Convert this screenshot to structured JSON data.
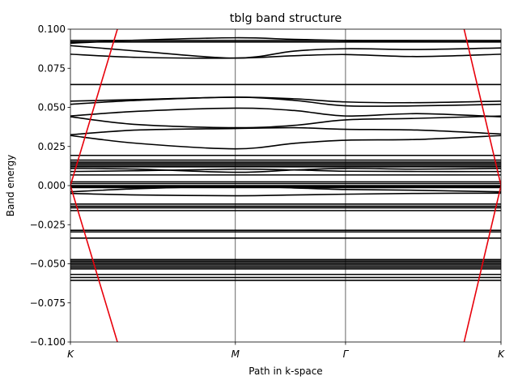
{
  "chart_data": {
    "type": "line",
    "title": "tblg band structure",
    "xlabel": "Path in k-space",
    "ylabel": "Band energy",
    "ylim": [
      -0.1,
      0.1
    ],
    "xlim": [
      0,
      3.85
    ],
    "yticks": [
      -0.1,
      -0.075,
      -0.05,
      -0.025,
      0.0,
      0.025,
      0.05,
      0.075,
      0.1
    ],
    "ytick_labels": [
      "−0.100",
      "−0.075",
      "−0.050",
      "−0.025",
      "0.000",
      "0.025",
      "0.050",
      "0.075",
      "0.100"
    ],
    "kpoints": [
      {
        "label": "K",
        "x": 0.0
      },
      {
        "label": "M",
        "x": 1.475
      },
      {
        "label": "Γ",
        "x": 2.46
      },
      {
        "label": "K",
        "x": 3.85
      }
    ],
    "grid": "vertical lines at k-points",
    "band_color": "#000000",
    "dirac_color": "#e8000b",
    "flat_bands": [
      0.0928,
      0.0918,
      0.0646,
      0.0193,
      0.0163,
      0.015,
      0.014,
      0.013,
      0.012,
      0.0068,
      0.0024,
      0.0013,
      0.0,
      -0.0007,
      -0.0013,
      -0.0118,
      -0.0132,
      -0.0142,
      -0.016,
      -0.0286,
      -0.0296,
      -0.0336,
      -0.0473,
      -0.0483,
      -0.0493,
      -0.0503,
      -0.0513,
      -0.0523,
      -0.0533,
      -0.0568,
      -0.0588,
      -0.0606
    ],
    "dispersive_bands": [
      {
        "x": [
          0.0,
          0.6,
          1.475,
          2.0,
          2.46,
          3.1,
          3.85
        ],
        "y": [
          0.084,
          0.082,
          0.0815,
          0.083,
          0.0838,
          0.0825,
          0.084
        ]
      },
      {
        "x": [
          0.0,
          0.6,
          1.475,
          2.0,
          2.46,
          3.1,
          3.85
        ],
        "y": [
          0.0895,
          0.086,
          0.0815,
          0.086,
          0.0875,
          0.087,
          0.088
        ]
      },
      {
        "x": [
          0.0,
          0.6,
          1.475,
          2.0,
          2.46,
          3.1,
          3.85
        ],
        "y": [
          0.091,
          0.093,
          0.0945,
          0.0935,
          0.0928,
          0.092,
          0.092
        ]
      },
      {
        "x": [
          0.0,
          0.6,
          1.475,
          2.0,
          2.46,
          3.1,
          3.85
        ],
        "y": [
          0.054,
          0.055,
          0.0565,
          0.0555,
          0.0535,
          0.053,
          0.054
        ]
      },
      {
        "x": [
          0.0,
          0.6,
          1.475,
          2.0,
          2.46,
          3.1,
          3.85
        ],
        "y": [
          0.052,
          0.0545,
          0.0565,
          0.0545,
          0.051,
          0.051,
          0.052
        ]
      },
      {
        "x": [
          0.0,
          0.6,
          1.475,
          2.0,
          2.46,
          3.1,
          3.85
        ],
        "y": [
          0.0445,
          0.0475,
          0.0495,
          0.048,
          0.0445,
          0.046,
          0.044
        ]
      },
      {
        "x": [
          0.0,
          0.6,
          1.475,
          2.0,
          2.46,
          3.1,
          3.85
        ],
        "y": [
          0.044,
          0.039,
          0.037,
          0.0385,
          0.042,
          0.043,
          0.0445
        ]
      },
      {
        "x": [
          0.0,
          0.6,
          1.475,
          2.0,
          2.46,
          3.1,
          3.85
        ],
        "y": [
          0.0325,
          0.0355,
          0.0365,
          0.037,
          0.036,
          0.0355,
          0.033
        ]
      },
      {
        "x": [
          0.0,
          0.6,
          1.475,
          2.0,
          2.46,
          3.1,
          3.85
        ],
        "y": [
          0.032,
          0.027,
          0.0235,
          0.027,
          0.029,
          0.0295,
          0.032
        ]
      },
      {
        "x": [
          0.0,
          0.6,
          1.475,
          2.0,
          2.46,
          3.1,
          3.85
        ],
        "y": [
          0.011,
          0.0105,
          0.0085,
          0.01,
          0.011,
          0.0105,
          0.011
        ]
      },
      {
        "x": [
          0.0,
          0.6,
          1.475,
          2.0,
          2.46,
          3.1,
          3.85
        ],
        "y": [
          0.009,
          0.0095,
          0.0105,
          0.01,
          0.0092,
          0.009,
          0.009
        ]
      },
      {
        "x": [
          0.0,
          0.6,
          1.475,
          2.0,
          2.46,
          3.1,
          3.85
        ],
        "y": [
          -0.004,
          -0.002,
          -0.0005,
          -0.0015,
          -0.0025,
          -0.003,
          -0.004
        ]
      },
      {
        "x": [
          0.0,
          0.6,
          1.475,
          2.0,
          2.46,
          3.1,
          3.85
        ],
        "y": [
          -0.005,
          -0.006,
          -0.0065,
          -0.006,
          -0.0055,
          -0.005,
          -0.0048
        ]
      }
    ],
    "dirac_lines": [
      {
        "x": [
          0.0,
          0.42
        ],
        "y": [
          0.0,
          0.1
        ]
      },
      {
        "x": [
          0.0,
          0.42
        ],
        "y": [
          0.0,
          -0.1
        ]
      },
      {
        "x": [
          3.85,
          3.52
        ],
        "y": [
          0.0,
          0.1
        ]
      },
      {
        "x": [
          3.85,
          3.52
        ],
        "y": [
          0.0,
          -0.1
        ]
      }
    ]
  }
}
